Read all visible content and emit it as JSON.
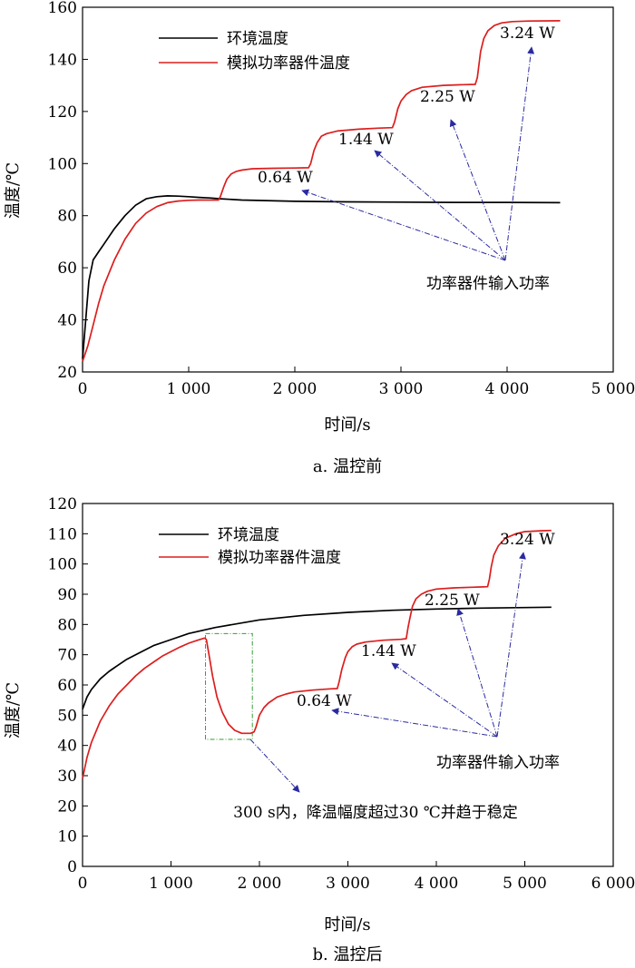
{
  "chart_data": [
    {
      "type": "line",
      "caption": "a. 温控前",
      "xlabel": "时间/s",
      "ylabel": "温度/℃",
      "xlim": [
        0,
        5000
      ],
      "ylim": [
        20,
        160
      ],
      "xticks": [
        0,
        1000,
        2000,
        3000,
        4000,
        5000
      ],
      "xtick_labels": [
        "0",
        "1 000",
        "2 000",
        "3 000",
        "4 000",
        "5 000"
      ],
      "yticks": [
        20,
        40,
        60,
        80,
        100,
        120,
        140,
        160
      ],
      "ytick_labels": [
        "20",
        "40",
        "60",
        "80",
        "100",
        "120",
        "140",
        "160"
      ],
      "grid": false,
      "legend": "top-left",
      "series": [
        {
          "name": "环境温度",
          "color": "#000000",
          "x": [
            0,
            30,
            60,
            100,
            150,
            200,
            300,
            400,
            500,
            600,
            700,
            800,
            900,
            1000,
            1100,
            1200,
            1300,
            1500,
            2000,
            2500,
            3000,
            3500,
            4000,
            4500
          ],
          "y": [
            25,
            40,
            55,
            63,
            66,
            69,
            75,
            80,
            84,
            86.5,
            87.3,
            87.6,
            87.5,
            87.3,
            87.0,
            86.8,
            86.5,
            86.0,
            85.5,
            85.3,
            85.2,
            85.1,
            85.1,
            85.0
          ]
        },
        {
          "name": "模拟功率器件温度",
          "color": "#dc1e1e",
          "x": [
            0,
            50,
            100,
            150,
            200,
            300,
            400,
            500,
            600,
            700,
            800,
            900,
            1000,
            1100,
            1200,
            1280,
            1300,
            1330,
            1360,
            1400,
            1450,
            1500,
            1600,
            1800,
            2000,
            2130,
            2150,
            2180,
            2210,
            2250,
            2300,
            2400,
            2600,
            2800,
            2920,
            2940,
            2970,
            3000,
            3050,
            3100,
            3200,
            3400,
            3600,
            3700,
            3720,
            3750,
            3780,
            3820,
            3880,
            3950,
            4050,
            4200,
            4500
          ],
          "y": [
            24,
            30,
            38,
            46,
            53,
            63,
            71,
            77,
            81,
            83.5,
            85,
            85.6,
            85.9,
            86,
            86,
            86,
            87.5,
            91,
            94,
            96,
            97,
            97.5,
            98,
            98.2,
            98.3,
            98.4,
            100,
            105,
            108,
            110.5,
            111.5,
            112.5,
            113.2,
            113.6,
            113.8,
            116,
            121,
            124,
            126.5,
            128,
            129.3,
            130,
            130.3,
            130.4,
            133,
            143,
            148,
            151,
            153,
            154,
            154.5,
            154.7,
            154.8
          ]
        }
      ],
      "annotations": [
        {
          "text": "0.64 W",
          "x": 1650,
          "y": 94
        },
        {
          "text": "1.44 W",
          "x": 2420,
          "y": 109
        },
        {
          "text": "2.25 W",
          "x": 3220,
          "y": 125
        },
        {
          "text": "3.24 W",
          "x": 3920,
          "y": 149
        },
        {
          "text": "功率器件输入功率",
          "x": 3350,
          "y": 52
        }
      ]
    },
    {
      "type": "line",
      "caption": "b. 温控后",
      "xlabel": "时间/s",
      "ylabel": "温度/℃",
      "xlim": [
        0,
        6000
      ],
      "ylim": [
        0,
        120
      ],
      "xticks": [
        0,
        1000,
        2000,
        3000,
        4000,
        5000,
        6000
      ],
      "xtick_labels": [
        "0",
        "1 000",
        "2 000",
        "3 000",
        "4 000",
        "5 000",
        "6 000"
      ],
      "yticks": [
        0,
        10,
        20,
        30,
        40,
        50,
        60,
        70,
        80,
        90,
        100,
        110,
        120
      ],
      "ytick_labels": [
        "0",
        "10",
        "20",
        "30",
        "40",
        "50",
        "60",
        "70",
        "80",
        "90",
        "100",
        "110",
        "120"
      ],
      "grid": false,
      "legend": "top-left",
      "series": [
        {
          "name": "环境温度",
          "color": "#000000",
          "x": [
            0,
            50,
            100,
            200,
            300,
            400,
            500,
            600,
            800,
            1000,
            1200,
            1500,
            2000,
            2500,
            3000,
            3500,
            4000,
            4500,
            5000,
            5300
          ],
          "y": [
            52,
            56,
            58.5,
            62,
            64.5,
            66.5,
            68.5,
            70,
            73,
            75,
            77,
            79,
            81.5,
            83,
            84,
            84.7,
            85.1,
            85.4,
            85.6,
            85.7
          ]
        },
        {
          "name": "模拟功率器件温度",
          "color": "#dc1e1e",
          "x": [
            0,
            50,
            100,
            200,
            300,
            400,
            500,
            600,
            700,
            800,
            900,
            1000,
            1100,
            1200,
            1300,
            1380,
            1400,
            1430,
            1470,
            1520,
            1580,
            1650,
            1720,
            1800,
            1850,
            1900,
            1940,
            1960,
            2000,
            2050,
            2100,
            2200,
            2300,
            2400,
            2600,
            2800,
            2880,
            2900,
            2930,
            2970,
            3000,
            3050,
            3100,
            3200,
            3400,
            3600,
            3660,
            3680,
            3700,
            3730,
            3770,
            3830,
            3900,
            4000,
            4200,
            4400,
            4500,
            4580,
            4600,
            4620,
            4650,
            4700,
            4780,
            4900,
            5000,
            5200,
            5300
          ],
          "y": [
            29,
            36,
            41,
            48,
            53,
            57,
            60,
            63,
            65.5,
            67.5,
            69.5,
            71,
            72.5,
            73.8,
            74.8,
            75.5,
            75,
            70,
            63,
            56,
            51,
            47,
            45,
            44,
            44,
            44,
            44.5,
            46,
            50,
            52.5,
            54,
            56,
            57,
            57.7,
            58.3,
            58.7,
            58.8,
            61,
            65,
            69,
            71,
            72.7,
            73.5,
            74.2,
            74.8,
            75.1,
            75.3,
            79,
            82,
            86,
            88.5,
            90,
            91,
            91.7,
            92.1,
            92.3,
            92.4,
            92.5,
            95,
            99,
            103,
            106,
            108.5,
            110,
            110.7,
            111,
            111.1
          ]
        }
      ],
      "highlight_box": {
        "x0": 1390,
        "x1": 1920,
        "y0": 42,
        "y1": 77
      },
      "annotations": [
        {
          "text": "0.64 W",
          "x": 2430,
          "y": 52
        },
        {
          "text": "1.44 W",
          "x": 3160,
          "y": 68
        },
        {
          "text": "2.25 W",
          "x": 3950,
          "y": 87
        },
        {
          "text": "3.24 W",
          "x": 4780,
          "y": 106
        },
        {
          "text": "功率器件输入功率",
          "x": 4020,
          "y": 33
        },
        {
          "text": "300 s内，降温幅度超过30 ℃并趋于稳定",
          "x": 1320,
          "y": 14
        }
      ]
    }
  ]
}
